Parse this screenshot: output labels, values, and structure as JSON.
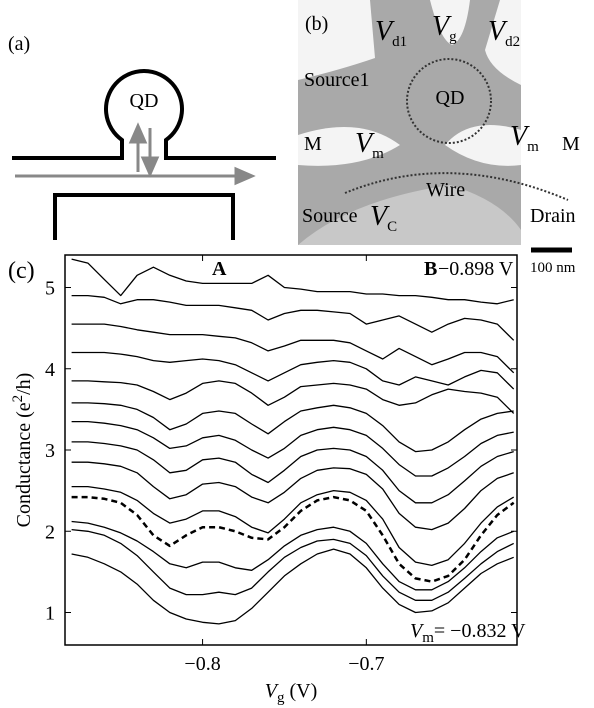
{
  "panels": {
    "a": {
      "label": "(a)",
      "qd": "QD"
    },
    "b": {
      "label": "(b)",
      "vd1": {
        "main": "V",
        "sub": "d1"
      },
      "vg": {
        "main": "V",
        "sub": "g"
      },
      "vd2": {
        "main": "V",
        "sub": "d2"
      },
      "source1": "Source1",
      "qd": "QD",
      "m_left": "M",
      "m_right": "M",
      "vm_left": {
        "main": "V",
        "sub": "m"
      },
      "vm_right": {
        "main": "V",
        "sub": "m"
      },
      "wire": "Wire",
      "source": "Source",
      "vc": {
        "main": "V",
        "sub": "C"
      },
      "drain": "Drain",
      "scale": "100 nm"
    }
  },
  "chart_data": {
    "type": "line",
    "label": "(c)",
    "xlabel": {
      "main": "V",
      "sub": "g",
      "rest": " (V)"
    },
    "ylabel": {
      "main": "Conductance (e",
      "sup": "2",
      "rest": "/h)"
    },
    "annotations": {
      "a": "A",
      "b": "B",
      "top_vm": "−0.898 V",
      "bottom_vm": {
        "main": "V",
        "sub": "m",
        "rest": "= −0.832 V"
      }
    },
    "xlim": [
      -0.884,
      -0.608
    ],
    "ylim": [
      0.6,
      5.4
    ],
    "xticks": [
      {
        "value": -0.8,
        "label": "−0.8"
      },
      {
        "value": -0.7,
        "label": "−0.7"
      }
    ],
    "yticks": [
      1,
      2,
      3,
      4,
      5
    ],
    "x": [
      -0.88,
      -0.87,
      -0.86,
      -0.85,
      -0.84,
      -0.83,
      -0.82,
      -0.81,
      -0.8,
      -0.79,
      -0.78,
      -0.77,
      -0.76,
      -0.75,
      -0.74,
      -0.73,
      -0.72,
      -0.71,
      -0.7,
      -0.69,
      -0.68,
      -0.67,
      -0.66,
      -0.65,
      -0.64,
      -0.63,
      -0.62,
      -0.61
    ],
    "series": [
      {
        "color": "#000",
        "dashed": false,
        "values": [
          1.72,
          1.68,
          1.6,
          1.5,
          1.35,
          1.15,
          1.0,
          0.92,
          0.88,
          0.86,
          0.9,
          1.05,
          1.25,
          1.45,
          1.6,
          1.72,
          1.78,
          1.72,
          1.55,
          1.3,
          1.1,
          1.0,
          1.02,
          1.12,
          1.3,
          1.48,
          1.6,
          1.68
        ]
      },
      {
        "color": "#000",
        "dashed": false,
        "values": [
          2.02,
          2.0,
          1.95,
          1.85,
          1.7,
          1.5,
          1.3,
          1.22,
          1.22,
          1.25,
          1.22,
          1.3,
          1.5,
          1.68,
          1.8,
          1.88,
          1.9,
          1.85,
          1.7,
          1.45,
          1.25,
          1.15,
          1.15,
          1.25,
          1.42,
          1.6,
          1.75,
          1.85
        ]
      },
      {
        "color": "#000",
        "dashed": false,
        "values": [
          2.12,
          2.1,
          2.05,
          1.98,
          1.88,
          1.75,
          1.6,
          1.55,
          1.62,
          1.62,
          1.55,
          1.52,
          1.65,
          1.82,
          1.95,
          2.02,
          2.05,
          2.0,
          1.85,
          1.6,
          1.38,
          1.28,
          1.28,
          1.38,
          1.55,
          1.75,
          1.92,
          2.0
        ]
      },
      {
        "color": "#000",
        "dashed": true,
        "values": [
          2.42,
          2.42,
          2.4,
          2.35,
          2.2,
          1.95,
          1.82,
          1.95,
          2.05,
          2.05,
          2.0,
          1.92,
          1.9,
          2.05,
          2.25,
          2.38,
          2.42,
          2.38,
          2.25,
          1.95,
          1.6,
          1.42,
          1.38,
          1.45,
          1.65,
          1.95,
          2.2,
          2.35
        ]
      },
      {
        "color": "#000",
        "dashed": false,
        "values": [
          2.55,
          2.55,
          2.52,
          2.48,
          2.38,
          2.22,
          2.1,
          2.15,
          2.25,
          2.25,
          2.18,
          2.05,
          1.98,
          2.15,
          2.35,
          2.45,
          2.5,
          2.48,
          2.38,
          2.15,
          1.8,
          1.62,
          1.58,
          1.65,
          1.85,
          2.1,
          2.3,
          2.42
        ]
      },
      {
        "color": "#000",
        "dashed": false,
        "values": [
          2.85,
          2.85,
          2.83,
          2.8,
          2.72,
          2.55,
          2.4,
          2.45,
          2.58,
          2.6,
          2.55,
          2.42,
          2.35,
          2.48,
          2.65,
          2.75,
          2.78,
          2.77,
          2.7,
          2.52,
          2.22,
          2.05,
          2.02,
          2.1,
          2.28,
          2.5,
          2.65,
          2.72
        ]
      },
      {
        "color": "#000",
        "dashed": false,
        "values": [
          3.1,
          3.1,
          3.08,
          3.05,
          3.0,
          2.88,
          2.72,
          2.75,
          2.88,
          2.9,
          2.85,
          2.7,
          2.6,
          2.75,
          2.92,
          3.0,
          3.02,
          3.0,
          2.92,
          2.75,
          2.5,
          2.35,
          2.35,
          2.45,
          2.62,
          2.8,
          2.92,
          2.98
        ]
      },
      {
        "color": "#000",
        "dashed": false,
        "values": [
          3.35,
          3.35,
          3.33,
          3.3,
          3.25,
          3.15,
          3.02,
          3.05,
          3.15,
          3.18,
          3.12,
          3.0,
          2.9,
          3.02,
          3.18,
          3.25,
          3.28,
          3.25,
          3.18,
          3.02,
          2.82,
          2.68,
          2.68,
          2.78,
          2.92,
          3.08,
          3.18,
          3.22
        ]
      },
      {
        "color": "#000",
        "dashed": false,
        "values": [
          3.58,
          3.58,
          3.57,
          3.55,
          3.5,
          3.4,
          3.25,
          3.32,
          3.45,
          3.48,
          3.45,
          3.32,
          3.2,
          3.35,
          3.48,
          3.52,
          3.55,
          3.52,
          3.45,
          3.3,
          3.1,
          2.98,
          3.0,
          3.1,
          3.25,
          3.38,
          3.45,
          3.48
        ]
      },
      {
        "color": "#000",
        "dashed": false,
        "values": [
          3.85,
          3.85,
          3.84,
          3.83,
          3.8,
          3.72,
          3.62,
          3.7,
          3.82,
          3.85,
          3.82,
          3.7,
          3.55,
          3.65,
          3.78,
          3.8,
          3.82,
          3.8,
          3.75,
          3.62,
          3.55,
          3.58,
          3.68,
          3.75,
          3.72,
          3.7,
          3.65,
          3.45
        ]
      },
      {
        "color": "#000",
        "dashed": false,
        "values": [
          4.2,
          4.2,
          4.2,
          4.18,
          4.15,
          4.1,
          4.08,
          4.1,
          4.12,
          4.1,
          4.05,
          3.95,
          3.85,
          3.95,
          4.05,
          4.08,
          4.1,
          4.08,
          4.0,
          3.85,
          3.8,
          3.9,
          3.85,
          3.8,
          3.9,
          3.98,
          3.95,
          3.75
        ]
      },
      {
        "color": "#000",
        "dashed": false,
        "values": [
          4.55,
          4.55,
          4.55,
          4.52,
          4.48,
          4.45,
          4.42,
          4.42,
          4.42,
          4.4,
          4.38,
          4.32,
          4.22,
          4.28,
          4.35,
          4.35,
          4.35,
          4.32,
          4.22,
          4.12,
          4.25,
          4.15,
          4.05,
          4.12,
          4.2,
          4.2,
          4.15,
          3.95
        ]
      },
      {
        "color": "#000",
        "dashed": false,
        "values": [
          4.9,
          4.9,
          4.88,
          4.8,
          4.85,
          4.85,
          4.82,
          4.78,
          4.78,
          4.78,
          4.75,
          4.72,
          4.6,
          4.68,
          4.72,
          4.72,
          4.7,
          4.68,
          4.55,
          4.6,
          4.65,
          4.55,
          4.45,
          4.55,
          4.62,
          4.6,
          4.55,
          4.35
        ]
      },
      {
        "color": "#000",
        "dashed": false,
        "values": [
          5.35,
          5.3,
          5.1,
          4.9,
          5.15,
          5.25,
          5.15,
          5.08,
          5.05,
          5.05,
          5.05,
          5.05,
          5.15,
          5.0,
          4.98,
          4.95,
          4.95,
          4.95,
          4.92,
          4.92,
          4.9,
          4.9,
          4.88,
          4.85,
          4.85,
          4.82,
          4.8,
          4.85
        ]
      }
    ]
  }
}
